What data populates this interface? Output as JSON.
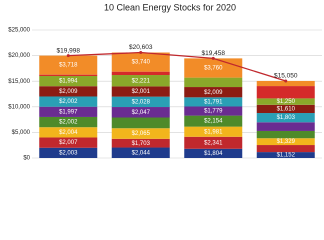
{
  "chart_data": {
    "type": "stacked-bar-line",
    "title": "10 Clean Energy Stocks for 2020",
    "categories": [
      null,
      null,
      null,
      null
    ],
    "ylim": [
      0,
      25000
    ],
    "yticks": [
      {
        "value": 0,
        "label": "$0"
      },
      {
        "value": 5000,
        "label": "$5,000"
      },
      {
        "value": 10000,
        "label": "$10,000"
      },
      {
        "value": 15000,
        "label": "$15,000"
      },
      {
        "value": 20000,
        "label": "$20,000"
      },
      {
        "value": 25000,
        "label": "$25,000"
      }
    ],
    "grid": true,
    "series": [
      {
        "color": "#1f3b8c",
        "values": [
          2003,
          2044,
          1804,
          1152
        ],
        "value_labels": [
          "$2,003",
          "$2,044",
          "$1,804",
          "$1,152"
        ]
      },
      {
        "color": "#c0282d",
        "values": [
          2007,
          1703,
          2341,
          1380
        ],
        "value_labels": [
          "$2,007",
          "$1,703",
          "$2,341",
          null
        ]
      },
      {
        "color": "#f2b51c",
        "values": [
          2004,
          2065,
          1981,
          1329
        ],
        "value_labels": [
          "$2,004",
          "$2,065",
          "$1,981",
          "$1,329"
        ]
      },
      {
        "color": "#4e8a2a",
        "values": [
          2002,
          2097,
          2154,
          1420
        ],
        "value_labels": [
          "$2,002",
          null,
          "$2,154",
          null
        ]
      },
      {
        "color": "#6a2c91",
        "values": [
          1997,
          2047,
          1779,
          1699
        ],
        "value_labels": [
          "$1,997",
          "$2,047",
          "$1,779",
          null
        ]
      },
      {
        "color": "#2a9fb5",
        "values": [
          2002,
          2028,
          1791,
          1803
        ],
        "value_labels": [
          "$2,002",
          "$2,028",
          "$1,791",
          "$1,803"
        ]
      },
      {
        "color": "#8c1c13",
        "values": [
          2009,
          2001,
          2009,
          1610
        ],
        "value_labels": [
          "$2,009",
          "$2,001",
          "$2,009",
          "$1,610"
        ]
      },
      {
        "color": "#8aa82a",
        "values": [
          1994,
          2221,
          1839,
          1250
        ],
        "value_labels": [
          "$1,994",
          "$2,221",
          null,
          "$1,250"
        ]
      },
      {
        "color": "#d42a2a",
        "values": [
          262,
          657,
          0,
          2407
        ],
        "value_labels": [
          null,
          null,
          null,
          null
        ]
      },
      {
        "color": "#f28c28",
        "values": [
          3718,
          3740,
          3760,
          1000
        ],
        "value_labels": [
          "$3,718",
          "$3,740",
          "$3,760",
          null
        ]
      }
    ],
    "totals": {
      "color": "#c0282d",
      "values": [
        19998,
        20603,
        19458,
        15050
      ],
      "value_labels": [
        "$19,998",
        "$20,603",
        "$19,458",
        "$15,050"
      ]
    }
  }
}
